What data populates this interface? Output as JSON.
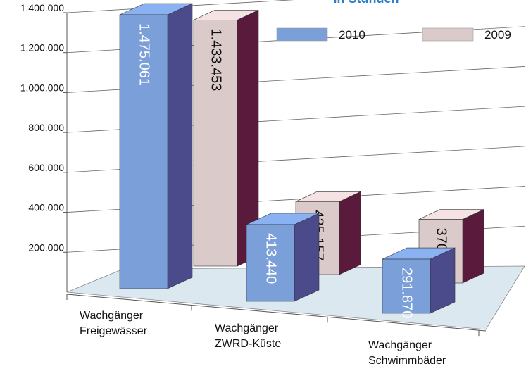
{
  "chart_data": {
    "type": "bar",
    "subtitle": "in Stunden",
    "categories": [
      "Wachgänger\nFreigewässer",
      "Wachgänger\nZWRD-Küste",
      "Wachgänger\nSchwimmbäder"
    ],
    "series": [
      {
        "name": "2010",
        "color": "#7b9fd9",
        "side_color": "#4b4b8c",
        "values": [
          1475061,
          413440,
          291870
        ],
        "value_labels": [
          "1.475.061",
          "413.440",
          "291.870"
        ]
      },
      {
        "name": "2009",
        "color": "#dbcaca",
        "side_color": "#5a1a3c",
        "values": [
          1433453,
          425157,
          370790
        ],
        "value_labels": [
          "1.433.453",
          "425.157",
          "370.790"
        ]
      }
    ],
    "ylim": [
      0,
      1400000
    ],
    "yticks": [
      {
        "value": 200000,
        "label": "200.000"
      },
      {
        "value": 400000,
        "label": "400.000"
      },
      {
        "value": 600000,
        "label": "600.000"
      },
      {
        "value": 800000,
        "label": "800.000"
      },
      {
        "value": 1000000,
        "label": "1.000.000"
      },
      {
        "value": 1200000,
        "label": "1.200.000"
      },
      {
        "value": 1400000,
        "label": "1.400.000"
      }
    ],
    "grid": true
  }
}
